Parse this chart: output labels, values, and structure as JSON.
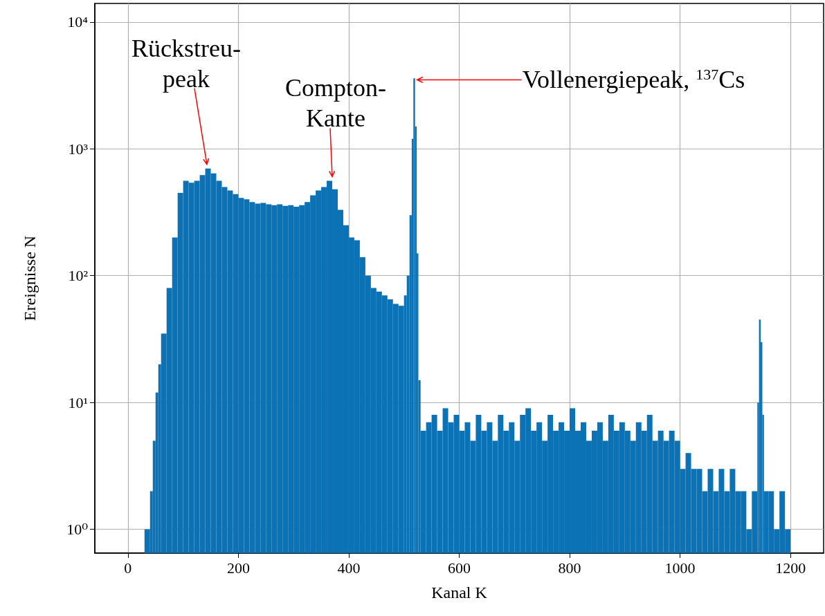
{
  "chart_data": {
    "type": "histogram",
    "xlabel": "Kanal K",
    "ylabel": "Ereignisse N",
    "bins": [
      30,
      40,
      45,
      50,
      55,
      60,
      70,
      80,
      90,
      100,
      110,
      120,
      130,
      140,
      150,
      160,
      170,
      180,
      190,
      200,
      210,
      220,
      230,
      240,
      250,
      260,
      270,
      280,
      290,
      300,
      310,
      320,
      330,
      340,
      350,
      360,
      370,
      380,
      390,
      400,
      410,
      420,
      430,
      440,
      450,
      460,
      470,
      480,
      490,
      500,
      505,
      510,
      514,
      517,
      520,
      523,
      526,
      530,
      540,
      550,
      560,
      570,
      580,
      590,
      600,
      610,
      620,
      630,
      640,
      650,
      660,
      670,
      680,
      690,
      700,
      710,
      720,
      730,
      740,
      750,
      760,
      770,
      780,
      790,
      800,
      810,
      820,
      830,
      840,
      850,
      860,
      870,
      880,
      890,
      900,
      910,
      920,
      930,
      940,
      950,
      960,
      970,
      980,
      990,
      1000,
      1010,
      1020,
      1030,
      1040,
      1050,
      1060,
      1070,
      1080,
      1090,
      1100,
      1110,
      1120,
      1130,
      1140,
      1143,
      1146,
      1149,
      1152,
      1160,
      1170,
      1180,
      1190,
      1200
    ],
    "values": [
      1,
      2,
      5,
      12,
      20,
      35,
      80,
      200,
      450,
      560,
      540,
      560,
      620,
      700,
      640,
      560,
      500,
      470,
      440,
      410,
      400,
      380,
      370,
      375,
      365,
      360,
      365,
      355,
      360,
      350,
      360,
      380,
      430,
      470,
      500,
      560,
      480,
      330,
      250,
      200,
      190,
      140,
      100,
      80,
      75,
      70,
      65,
      60,
      58,
      70,
      100,
      300,
      1200,
      3600,
      1500,
      150,
      15,
      6,
      7,
      8,
      6,
      9,
      7,
      8,
      6,
      7,
      5,
      8,
      6,
      7,
      5,
      8,
      6,
      7,
      5,
      8,
      9,
      6,
      7,
      5,
      8,
      6,
      7,
      6,
      9,
      6,
      7,
      5,
      6,
      7,
      5,
      8,
      6,
      7,
      6,
      5,
      7,
      6,
      8,
      5,
      6,
      5,
      6,
      5,
      3,
      4,
      3,
      3,
      2,
      3,
      2,
      3,
      2,
      3,
      2,
      2,
      1,
      2,
      10,
      45,
      30,
      8,
      2,
      2,
      1,
      2,
      1
    ],
    "color": "#0a72b5",
    "log": "y",
    "xlim": [
      -60,
      1260
    ],
    "xticks": [
      0,
      200,
      400,
      600,
      800,
      1000,
      1200
    ],
    "ylim": [
      0.65,
      14000
    ],
    "yticks": [
      {
        "value": 1,
        "label": "10⁰"
      },
      {
        "value": 10,
        "label": "10¹"
      },
      {
        "value": 100,
        "label": "10²"
      },
      {
        "value": 1000,
        "label": "10³"
      },
      {
        "value": 10000,
        "label": "10⁴"
      }
    ],
    "grid": true,
    "annotations": [
      {
        "text": "Rückstreu-\npeak",
        "x": 143,
        "y": 700
      },
      {
        "text": "Compton-\nKante",
        "x": 370,
        "y": 560
      },
      {
        "text": "Vollenergiepeak, $^{137}$Cs",
        "x": 520,
        "y": 3500
      }
    ]
  }
}
